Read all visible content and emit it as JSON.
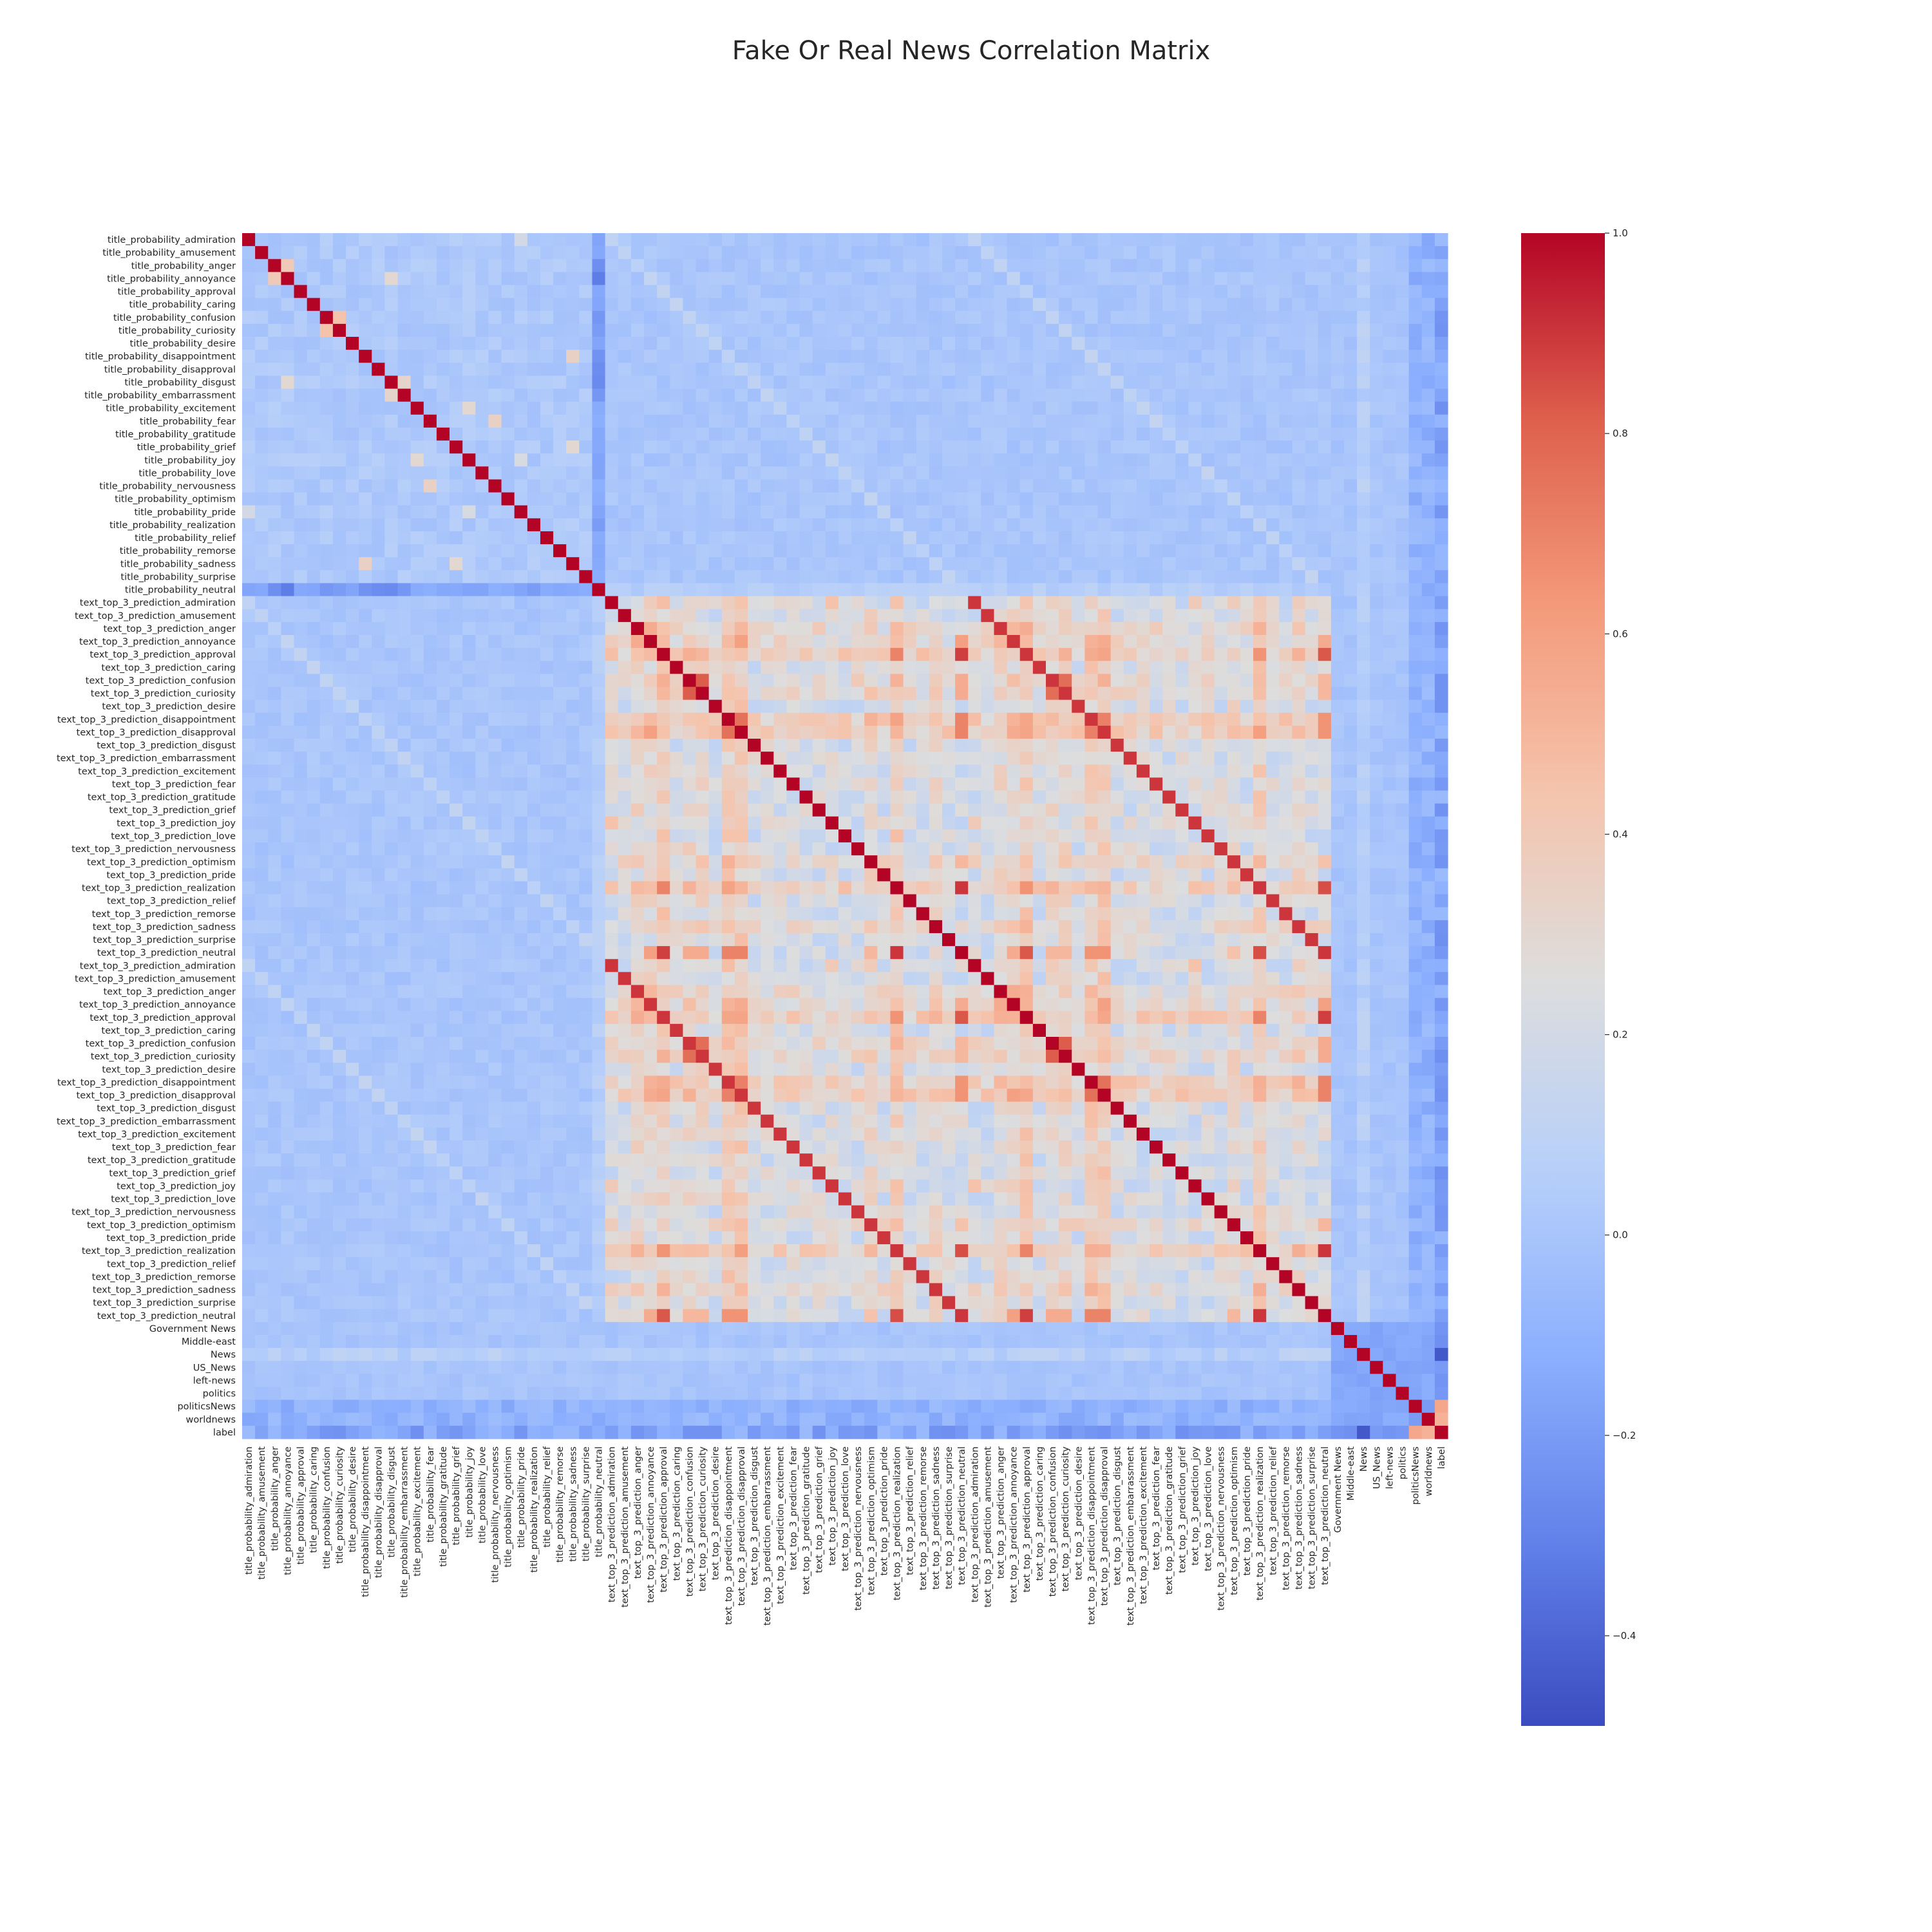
{
  "chart_data": {
    "type": "heatmap",
    "title": "Fake Or Real News Correlation Matrix",
    "xlabel": "",
    "ylabel": "",
    "colormap": "coolwarm",
    "color_low": "#3b4cc0",
    "color_mid": "#dddddd",
    "color_high": "#b40426",
    "vmin": -0.49,
    "vmax": 1.0,
    "colorbar_ticks": [
      1.0,
      0.8,
      0.6,
      0.4,
      0.2,
      0.0,
      -0.2,
      -0.4
    ],
    "colorbar_tick_labels": [
      "1.0",
      "0.8",
      "0.6",
      "0.4",
      "0.2",
      "0.0",
      "−0.2",
      "−0.4"
    ],
    "emotions": [
      "admiration",
      "amusement",
      "anger",
      "annoyance",
      "approval",
      "caring",
      "confusion",
      "curiosity",
      "desire",
      "disappointment",
      "disapproval",
      "disgust",
      "embarrassment",
      "excitement",
      "fear",
      "gratitude",
      "grief",
      "joy",
      "love",
      "nervousness",
      "optimism",
      "pride",
      "realization",
      "relief",
      "remorse",
      "sadness",
      "surprise",
      "neutral"
    ],
    "title_prefix": "title_probability_",
    "text_prefix": "text_top_3_prediction_",
    "extra_labels": [
      "Government News",
      "Middle-east",
      "News",
      "US_News",
      "left-news",
      "politics",
      "politicsNews",
      "worldnews",
      "label"
    ],
    "notable_cells": [
      {
        "row": "label",
        "col": "politicsNews",
        "value": 0.57
      },
      {
        "row": "label",
        "col": "worldnews",
        "value": 0.52
      },
      {
        "row": "label",
        "col": "News",
        "value": -0.45
      },
      {
        "row": "title_probability_annoyance",
        "col": "title_probability_neutral",
        "value": -0.28
      },
      {
        "row": "text_top_3_prediction_approval",
        "col": "text_top_3_prediction_neutral",
        "value": 0.9
      },
      {
        "row": "text_top_3_prediction_confusion",
        "col": "text_top_3_prediction_curiosity",
        "value": 0.8
      },
      {
        "row": "text_top_3_prediction_disappointment",
        "col": "text_top_3_prediction_disapproval",
        "value": 0.75
      },
      {
        "row": "text_top_3_prediction_realization",
        "col": "text_top_3_prediction_neutral",
        "value": 0.9
      },
      {
        "row": "title_probability_confusion",
        "col": "title_probability_curiosity",
        "value": 0.45
      },
      {
        "row": "title_probability_anger",
        "col": "title_probability_annoyance",
        "value": 0.4
      }
    ]
  }
}
